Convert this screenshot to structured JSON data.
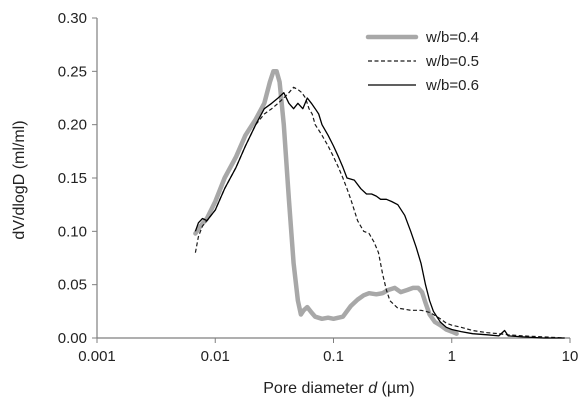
{
  "chart_data": {
    "type": "line",
    "title": "",
    "xlabel": {
      "pre": "Pore diameter ",
      "var": "d",
      "post": " (µm)"
    },
    "ylabel": "dV/dlogD (ml/ml)",
    "xscale": "log",
    "xlim": [
      0.001,
      10
    ],
    "ylim": [
      0,
      0.3
    ],
    "xticks": [
      "0.001",
      "0.01",
      "0.1",
      "1",
      "10"
    ],
    "yticks": [
      "0.00",
      "0.05",
      "0.10",
      "0.15",
      "0.20",
      "0.25",
      "0.30"
    ],
    "grid": false,
    "legend": "top-right",
    "series": [
      {
        "name": "w/b=0.4",
        "style": "thick-gray",
        "color": "#a8a8a8",
        "x": [
          0.0068,
          0.0075,
          0.0085,
          0.01,
          0.012,
          0.015,
          0.018,
          0.022,
          0.026,
          0.029,
          0.031,
          0.033,
          0.035,
          0.038,
          0.042,
          0.046,
          0.05,
          0.053,
          0.056,
          0.06,
          0.065,
          0.07,
          0.08,
          0.09,
          0.1,
          0.12,
          0.14,
          0.16,
          0.18,
          0.2,
          0.23,
          0.26,
          0.29,
          0.33,
          0.37,
          0.42,
          0.47,
          0.52,
          0.56,
          0.6,
          0.65,
          0.72,
          0.8,
          0.9,
          1.0,
          1.1
        ],
        "y": [
          0.098,
          0.105,
          0.112,
          0.128,
          0.15,
          0.17,
          0.19,
          0.205,
          0.22,
          0.24,
          0.25,
          0.25,
          0.24,
          0.2,
          0.13,
          0.07,
          0.035,
          0.022,
          0.026,
          0.029,
          0.024,
          0.02,
          0.018,
          0.019,
          0.018,
          0.02,
          0.03,
          0.036,
          0.04,
          0.042,
          0.041,
          0.042,
          0.045,
          0.047,
          0.043,
          0.045,
          0.047,
          0.047,
          0.043,
          0.033,
          0.022,
          0.015,
          0.012,
          0.008,
          0.006,
          0.004
        ]
      },
      {
        "name": "w/b=0.5",
        "style": "dashed",
        "color": "#1a1a1a",
        "x": [
          0.0068,
          0.0072,
          0.0078,
          0.0085,
          0.01,
          0.012,
          0.015,
          0.018,
          0.022,
          0.026,
          0.03,
          0.034,
          0.038,
          0.042,
          0.046,
          0.05,
          0.054,
          0.058,
          0.062,
          0.066,
          0.07,
          0.075,
          0.08,
          0.09,
          0.1,
          0.11,
          0.12,
          0.13,
          0.14,
          0.16,
          0.18,
          0.2,
          0.22,
          0.24,
          0.26,
          0.28,
          0.3,
          0.35,
          0.4,
          0.45,
          0.5,
          0.55,
          0.6,
          0.65,
          0.7,
          0.8,
          0.9,
          1.0,
          1.2,
          1.5,
          2.0,
          2.5,
          3.0,
          4.0,
          6.0,
          9.0
        ],
        "y": [
          0.08,
          0.095,
          0.105,
          0.11,
          0.12,
          0.14,
          0.16,
          0.18,
          0.2,
          0.21,
          0.215,
          0.22,
          0.225,
          0.23,
          0.235,
          0.233,
          0.23,
          0.225,
          0.215,
          0.21,
          0.2,
          0.195,
          0.19,
          0.18,
          0.17,
          0.16,
          0.15,
          0.14,
          0.13,
          0.11,
          0.1,
          0.098,
          0.09,
          0.08,
          0.06,
          0.045,
          0.035,
          0.028,
          0.027,
          0.026,
          0.026,
          0.026,
          0.025,
          0.024,
          0.022,
          0.018,
          0.014,
          0.012,
          0.01,
          0.007,
          0.005,
          0.004,
          0.003,
          0.002,
          0.001,
          0.0
        ]
      },
      {
        "name": "w/b=0.6",
        "style": "solid-thin",
        "color": "#000000",
        "x": [
          0.0068,
          0.0072,
          0.0078,
          0.0085,
          0.01,
          0.012,
          0.015,
          0.018,
          0.022,
          0.026,
          0.03,
          0.034,
          0.038,
          0.042,
          0.046,
          0.05,
          0.055,
          0.06,
          0.065,
          0.07,
          0.075,
          0.08,
          0.09,
          0.1,
          0.11,
          0.12,
          0.13,
          0.15,
          0.17,
          0.19,
          0.21,
          0.23,
          0.25,
          0.28,
          0.31,
          0.35,
          0.4,
          0.45,
          0.5,
          0.55,
          0.6,
          0.65,
          0.7,
          0.8,
          0.9,
          1.0,
          1.2,
          1.5,
          2.0,
          2.5,
          2.8,
          3.0,
          4.0,
          6.0,
          9.0
        ],
        "y": [
          0.1,
          0.108,
          0.112,
          0.11,
          0.12,
          0.14,
          0.16,
          0.18,
          0.2,
          0.215,
          0.22,
          0.225,
          0.23,
          0.22,
          0.215,
          0.22,
          0.215,
          0.225,
          0.22,
          0.215,
          0.21,
          0.2,
          0.19,
          0.18,
          0.17,
          0.16,
          0.15,
          0.148,
          0.14,
          0.135,
          0.135,
          0.133,
          0.13,
          0.13,
          0.128,
          0.125,
          0.115,
          0.1,
          0.085,
          0.07,
          0.05,
          0.035,
          0.025,
          0.015,
          0.01,
          0.008,
          0.006,
          0.004,
          0.003,
          0.002,
          0.007,
          0.002,
          0.001,
          0.0,
          0.0
        ]
      }
    ]
  }
}
